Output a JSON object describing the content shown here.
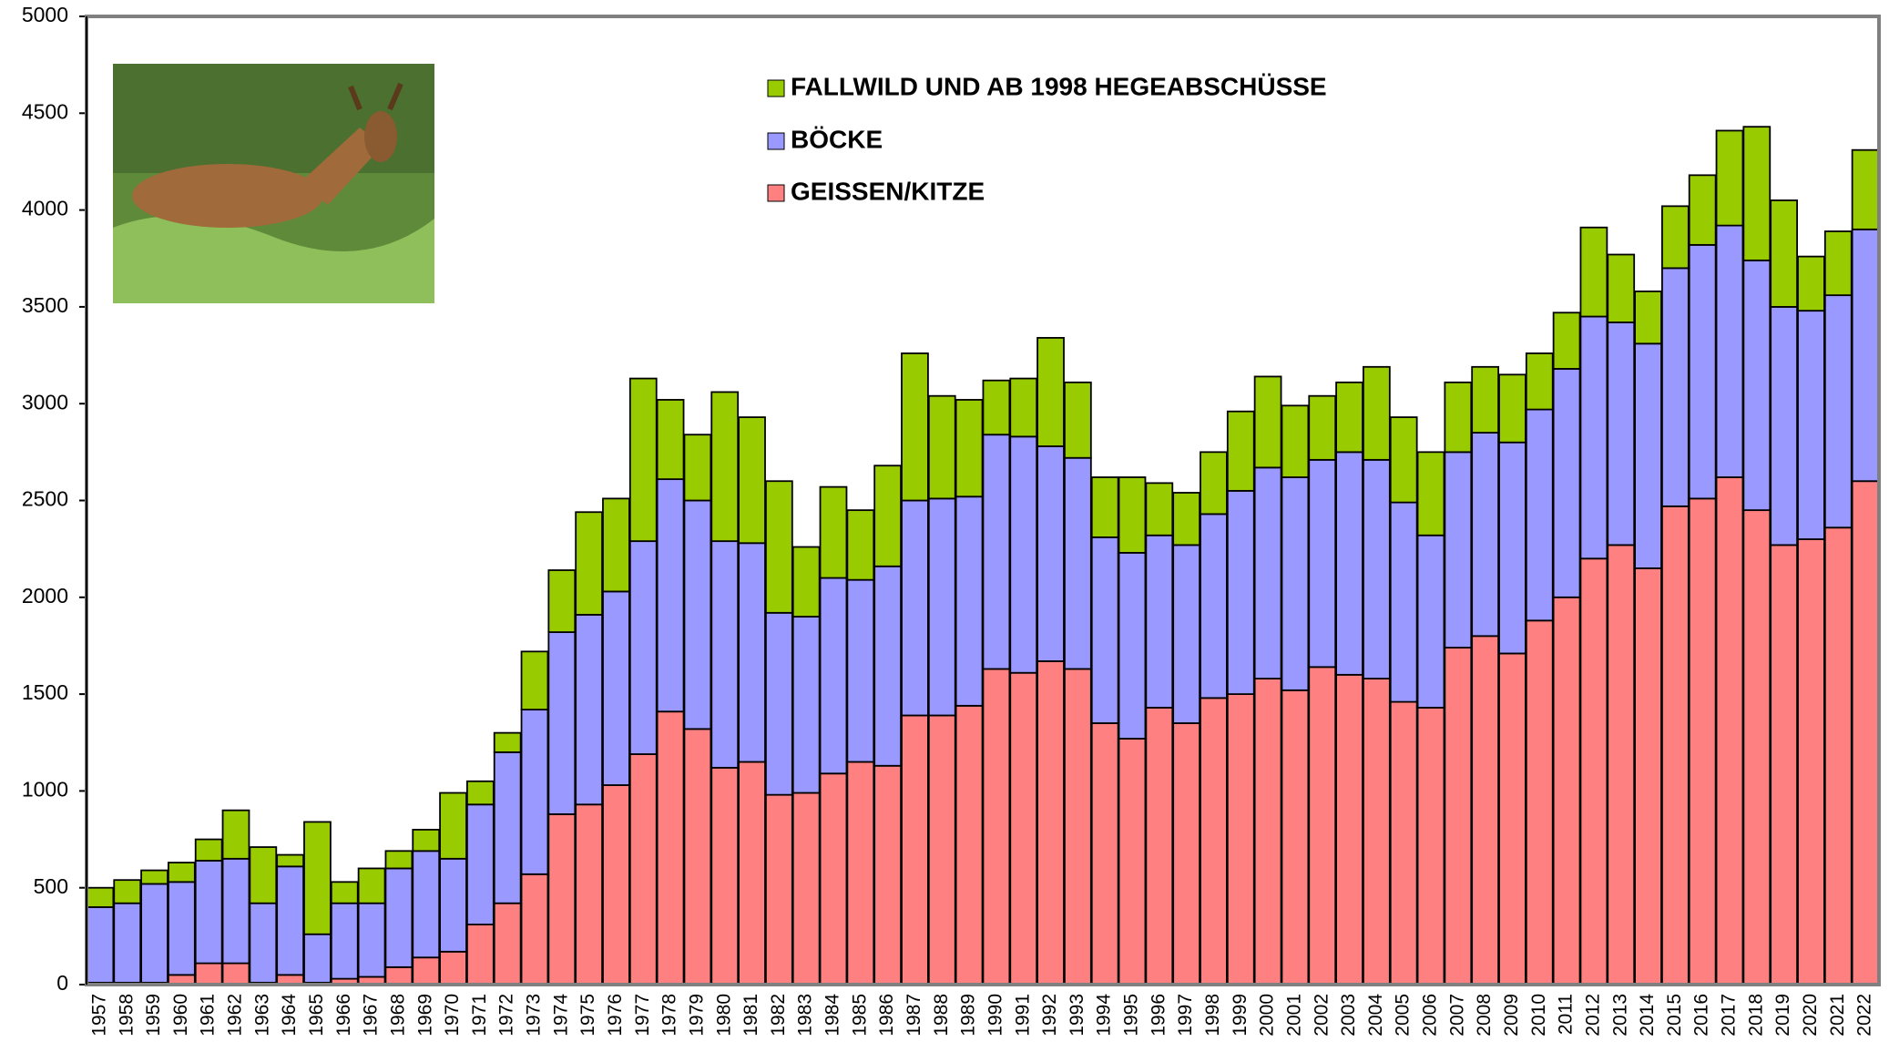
{
  "chart_data": {
    "type": "stacked-bar",
    "categories": [
      "1957",
      "1958",
      "1959",
      "1960",
      "1961",
      "1962",
      "1963",
      "1964",
      "1965",
      "1966",
      "1967",
      "1968",
      "1969",
      "1970",
      "1971",
      "1972",
      "1973",
      "1974",
      "1975",
      "1976",
      "1977",
      "1978",
      "1979",
      "1980",
      "1981",
      "1982",
      "1983",
      "1984",
      "1985",
      "1986",
      "1987",
      "1988",
      "1989",
      "1990",
      "1991",
      "1992",
      "1993",
      "1994",
      "1995",
      "1996",
      "1997",
      "1998",
      "1999",
      "2000",
      "2001",
      "2002",
      "2003",
      "2004",
      "2005",
      "2006",
      "2007",
      "2008",
      "2009",
      "2010",
      "2011",
      "2012",
      "2013",
      "2014",
      "2015",
      "2016",
      "2017",
      "2018",
      "2019",
      "2020",
      "2021",
      "2022"
    ],
    "series": [
      {
        "name": "GEISSEN/KITZE",
        "color": "#ff8080",
        "values": [
          10,
          10,
          10,
          50,
          110,
          110,
          10,
          50,
          10,
          30,
          40,
          90,
          140,
          170,
          310,
          420,
          570,
          880,
          930,
          1030,
          1190,
          1410,
          1320,
          1120,
          1150,
          980,
          990,
          1090,
          1150,
          1130,
          1390,
          1390,
          1440,
          1630,
          1610,
          1670,
          1630,
          1350,
          1270,
          1430,
          1350,
          1480,
          1500,
          1580,
          1520,
          1640,
          1600,
          1580,
          1460,
          1430,
          1740,
          1800,
          1710,
          1880,
          2000,
          2200,
          2270,
          2150,
          2470,
          2510,
          2620,
          2450,
          2270,
          2300,
          2360,
          2600
        ]
      },
      {
        "name": "BÖCKE",
        "color": "#9999ff",
        "values": [
          390,
          410,
          510,
          480,
          530,
          540,
          410,
          560,
          250,
          390,
          380,
          510,
          550,
          480,
          620,
          780,
          850,
          940,
          980,
          1000,
          1100,
          1200,
          1180,
          1170,
          1130,
          940,
          910,
          1010,
          940,
          1030,
          1110,
          1120,
          1080,
          1210,
          1220,
          1110,
          1090,
          960,
          960,
          890,
          920,
          950,
          1050,
          1090,
          1100,
          1070,
          1150,
          1130,
          1030,
          890,
          1010,
          1050,
          1090,
          1090,
          1180,
          1250,
          1150,
          1160,
          1230,
          1310,
          1300,
          1290,
          1230,
          1180,
          1200,
          1300
        ]
      },
      {
        "name": "FALLWILD UND AB 1998  HEGEABSCHÜSSE",
        "color": "#99cc00",
        "values": [
          100,
          120,
          70,
          100,
          110,
          250,
          290,
          60,
          580,
          110,
          180,
          90,
          110,
          340,
          120,
          100,
          300,
          320,
          530,
          480,
          840,
          410,
          340,
          770,
          650,
          680,
          360,
          470,
          360,
          520,
          760,
          530,
          500,
          280,
          300,
          560,
          390,
          310,
          390,
          270,
          270,
          320,
          410,
          470,
          370,
          330,
          360,
          480,
          440,
          430,
          360,
          340,
          350,
          290,
          290,
          460,
          350,
          270,
          320,
          360,
          490,
          690,
          550,
          280,
          330,
          410
        ]
      }
    ],
    "ylim": [
      0,
      5000
    ],
    "yticks": [
      0,
      500,
      1000,
      1500,
      2000,
      2500,
      3000,
      3500,
      4000,
      4500,
      5000
    ]
  }
}
